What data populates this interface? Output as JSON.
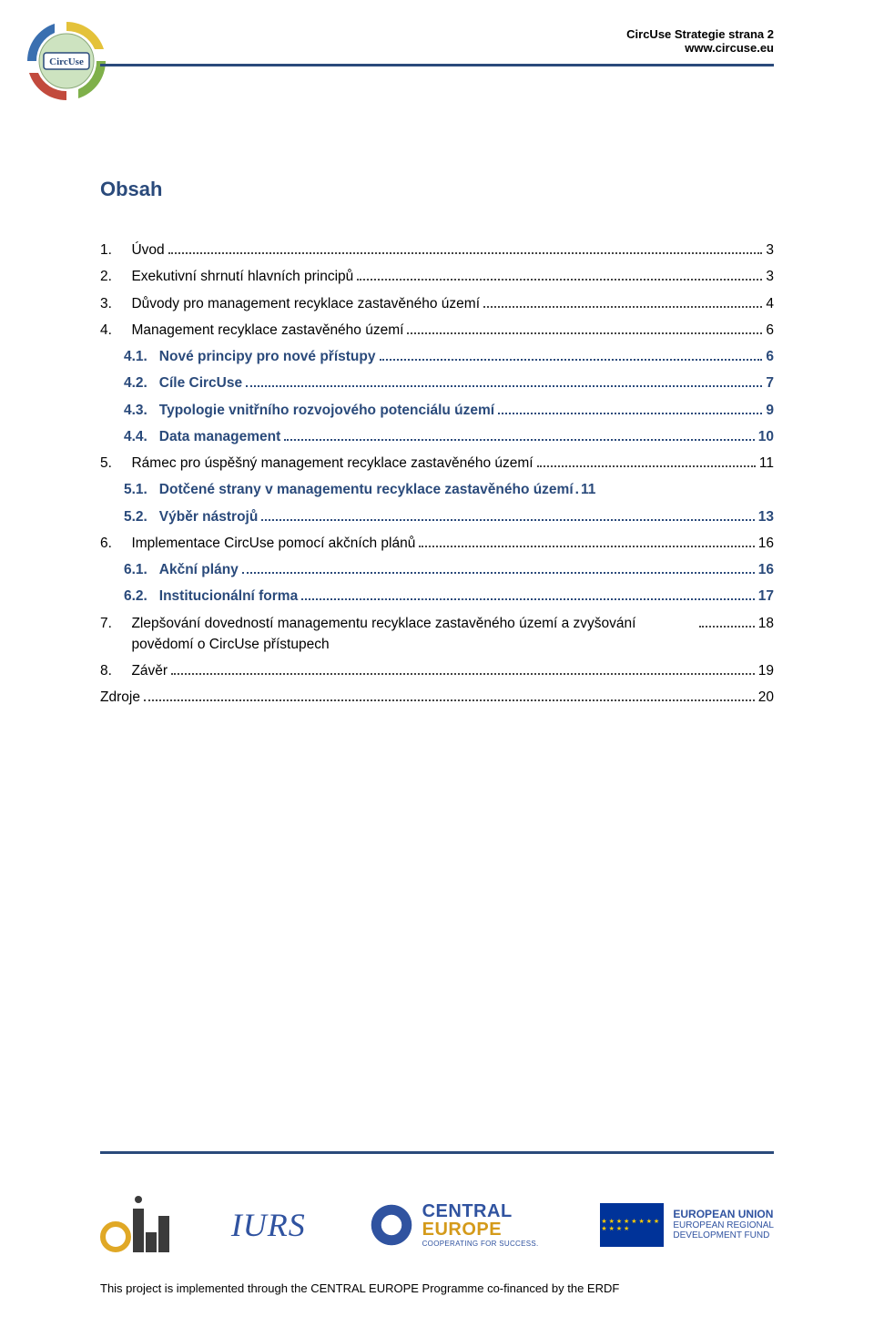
{
  "header": {
    "line1": "CircUse Strategie strana 2",
    "line2": "www.circuse.eu",
    "logo_label": "CircUse"
  },
  "title": "Obsah",
  "toc": [
    {
      "num": "1.",
      "indent": 0,
      "label": "Úvod",
      "page": "3",
      "sub": false
    },
    {
      "num": "2.",
      "indent": 0,
      "label": "Exekutivní shrnutí hlavních principů",
      "page": "3",
      "sub": false
    },
    {
      "num": "3.",
      "indent": 0,
      "label": "Důvody pro management recyklace zastavěného území",
      "page": "4",
      "sub": false
    },
    {
      "num": "4.",
      "indent": 0,
      "label": "Management recyklace zastavěného území",
      "page": "6",
      "sub": false
    },
    {
      "num": "4.1.",
      "indent": 1,
      "label": "Nové principy pro nové přístupy",
      "page": "6",
      "sub": true
    },
    {
      "num": "4.2.",
      "indent": 1,
      "label": "Cíle CircUse",
      "page": "7",
      "sub": true
    },
    {
      "num": "4.3.",
      "indent": 1,
      "label": "Typologie vnitřního rozvojového potenciálu území",
      "page": "9",
      "sub": true
    },
    {
      "num": "4.4.",
      "indent": 1,
      "label": "Data management",
      "page": "10",
      "sub": true
    },
    {
      "num": "5.",
      "indent": 0,
      "label": "Rámec pro úspěšný management recyklace zastavěného území",
      "page": "11",
      "sub": false
    },
    {
      "num": "5.1.",
      "indent": 1,
      "label": "Dotčené strany v managementu recyklace zastavěného území",
      "page": "11",
      "sub": true,
      "nodots": true
    },
    {
      "num": "5.2.",
      "indent": 1,
      "label": "Výběr nástrojů",
      "page": "13",
      "sub": true
    },
    {
      "num": "6.",
      "indent": 0,
      "label": "Implementace CircUse pomocí akčních plánů",
      "page": "16",
      "sub": false
    },
    {
      "num": "6.1.",
      "indent": 1,
      "label": "Akční plány",
      "page": "16",
      "sub": true
    },
    {
      "num": "6.2.",
      "indent": 1,
      "label": "Institucionální forma",
      "page": "17",
      "sub": true
    },
    {
      "num": "7.",
      "indent": 0,
      "label": "Zlepšování dovedností managementu recyklace zastavěného území a zvyšování povědomí o CircUse přístupech",
      "page": "18",
      "sub": false,
      "multiline": true
    },
    {
      "num": "8.",
      "indent": 0,
      "label": "Závěr",
      "page": "19",
      "sub": false
    },
    {
      "num": "",
      "indent": -1,
      "label": "Zdroje",
      "page": "20",
      "sub": false
    }
  ],
  "footer": {
    "iurs": "IURS",
    "central_l1": "CENTRAL",
    "central_l2": "EUROPE",
    "central_l3": "COOPERATING FOR SUCCESS.",
    "eu_l1": "EUROPEAN UNION",
    "eu_l2": "EUROPEAN REGIONAL",
    "eu_l3": "DEVELOPMENT FUND",
    "note": "This project is implemented through the CENTRAL EUROPE Programme co-financed by the ERDF"
  },
  "colors": {
    "accent": "#2a4a7b",
    "text": "#000000",
    "iurs": "#3053a0",
    "gold": "#d49a1a"
  }
}
